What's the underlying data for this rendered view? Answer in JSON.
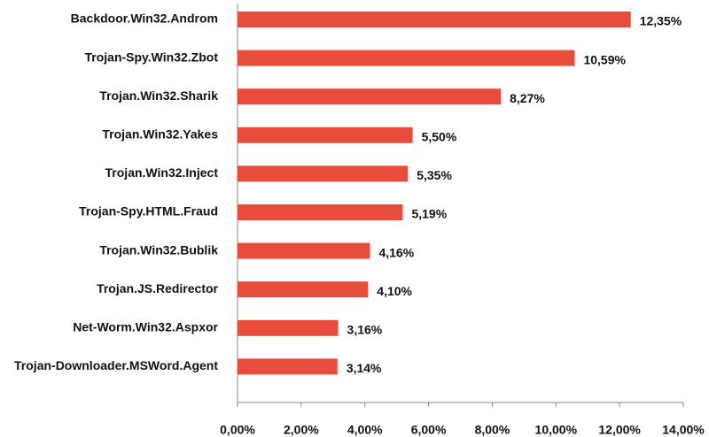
{
  "chart_data": {
    "type": "barh",
    "categories": [
      "Backdoor.Win32.Androm",
      "Trojan-Spy.Win32.Zbot",
      "Trojan.Win32.Sharik",
      "Trojan.Win32.Yakes",
      "Trojan.Win32.Inject",
      "Trojan-Spy.HTML.Fraud",
      "Trojan.Win32.Bublik",
      "Trojan.JS.Redirector",
      "Net-Worm.Win32.Aspxor",
      "Trojan-Downloader.MSWord.Agent"
    ],
    "values": [
      12.35,
      10.59,
      8.27,
      5.5,
      5.35,
      5.19,
      4.16,
      4.1,
      3.16,
      3.14
    ],
    "value_labels": [
      "12,35%",
      "10,59%",
      "8,27%",
      "5,50%",
      "5,35%",
      "5,19%",
      "4,16%",
      "4,10%",
      "3,16%",
      "3,14%"
    ],
    "color": "#e84c3d",
    "xlim": [
      0,
      14
    ],
    "xticks": [
      {
        "value": 0,
        "label": "0,00%"
      },
      {
        "value": 2,
        "label": "2,00%"
      },
      {
        "value": 4,
        "label": "4,00%"
      },
      {
        "value": 6,
        "label": "6,00%"
      },
      {
        "value": 8,
        "label": "8,00%"
      },
      {
        "value": 10,
        "label": "10,00%"
      },
      {
        "value": 12,
        "label": "12,00%"
      },
      {
        "value": 14,
        "label": "14,00%"
      }
    ],
    "grid": false
  }
}
